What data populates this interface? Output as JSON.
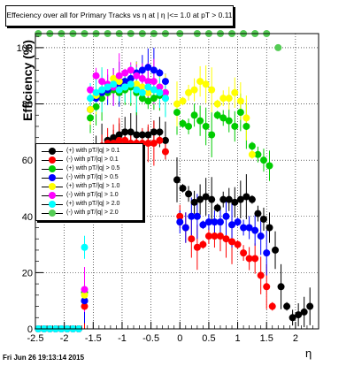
{
  "chart_data": {
    "type": "scatter",
    "title": "Effeciency over all for Primary Tracks vs  η at | η |<= 1.0 at pT > 0.11",
    "xlabel": "η",
    "ylabel": "Efficiency (%)",
    "xlim": [
      -2.5,
      2.4
    ],
    "ylim": [
      0,
      105
    ],
    "x_ticks": [
      -2.5,
      -2,
      -1.5,
      -1,
      -0.5,
      0,
      0.5,
      1,
      1.5,
      2
    ],
    "x_tick_labels": [
      "-2.5",
      "-2",
      "-1.5",
      "-1",
      "-0.5",
      "0",
      "0.5",
      "1",
      "1.5",
      "2"
    ],
    "y_ticks": [
      0,
      20,
      40,
      60,
      80,
      100
    ],
    "y_tick_labels": [
      "0",
      "20",
      "40",
      "60",
      "80",
      "100"
    ],
    "grid": true,
    "legend_position": "left-middle",
    "series": [
      {
        "name": "(+) with pT/|q| > 0.1",
        "color": "#000000",
        "x": [
          -2.45,
          -2.35,
          -2.25,
          -2.15,
          -2.05,
          -1.95,
          -1.85,
          -1.75,
          -1.65,
          -1.55,
          -1.45,
          -1.35,
          -1.25,
          -1.15,
          -1.05,
          -0.95,
          -0.85,
          -0.75,
          -0.65,
          -0.55,
          -0.45,
          -0.35,
          -0.25,
          -0.05,
          0.05,
          0.15,
          0.25,
          0.35,
          0.45,
          0.55,
          0.65,
          0.75,
          0.85,
          0.95,
          1.05,
          1.15,
          1.25,
          1.35,
          1.45,
          1.55,
          1.65,
          1.75,
          1.85,
          1.95,
          2.05,
          2.15,
          2.25
        ],
        "y": [
          0,
          0,
          0,
          0,
          0,
          0,
          0,
          0,
          10,
          58,
          62,
          65,
          67,
          68,
          69,
          70,
          70,
          69,
          69,
          69,
          70,
          70,
          67,
          53,
          50,
          48,
          45,
          46,
          47,
          46,
          43,
          46,
          46,
          45,
          46,
          47,
          46,
          41,
          39,
          36,
          28,
          15,
          8,
          4,
          5,
          6,
          8
        ]
      },
      {
        "name": "(-) with pT/|q| > 0.1",
        "color": "#ff0000",
        "x": [
          -2.45,
          -2.35,
          -2.25,
          -2.15,
          -2.05,
          -1.95,
          -1.85,
          -1.75,
          -1.65,
          -1.55,
          -1.45,
          -1.35,
          -1.25,
          -1.15,
          -1.05,
          -0.95,
          -0.85,
          -0.75,
          -0.65,
          -0.55,
          -0.45,
          -0.35,
          -0.25,
          0.0,
          0.1,
          0.2,
          0.3,
          0.4,
          0.5,
          0.6,
          0.7,
          0.8,
          0.9,
          1.0,
          1.1,
          1.2,
          1.3,
          1.4,
          1.5,
          1.6
        ],
        "y": [
          0,
          0,
          0,
          0,
          0,
          0,
          0,
          0,
          8,
          60,
          63,
          65,
          66,
          66,
          67,
          67,
          66,
          66,
          66,
          66,
          66,
          67,
          63,
          40,
          36,
          32,
          29,
          30,
          33,
          33,
          33,
          32,
          31,
          30,
          27,
          25,
          25,
          19,
          15,
          8
        ]
      },
      {
        "name": "(+) with pT/|q| > 0.5",
        "color": "#00cc00",
        "x": [
          -2.45,
          -2.35,
          -2.25,
          -2.15,
          -2.05,
          -1.95,
          -1.85,
          -1.75,
          -1.65,
          -1.55,
          -1.45,
          -1.35,
          -1.25,
          -1.15,
          -1.05,
          -0.95,
          -0.85,
          -0.75,
          -0.65,
          -0.55,
          -0.45,
          -0.35,
          -0.25,
          -0.05,
          0.05,
          0.15,
          0.25,
          0.35,
          0.45,
          0.55,
          0.65,
          0.75,
          0.85,
          0.95,
          1.05,
          1.15,
          1.25,
          1.35,
          1.45,
          1.55
        ],
        "y": [
          0,
          0,
          0,
          0,
          0,
          0,
          0,
          0,
          13,
          75,
          79,
          82,
          84,
          85,
          84,
          85,
          86,
          84,
          82,
          81,
          82,
          83,
          82,
          77,
          73,
          72,
          76,
          74,
          72,
          69,
          76,
          75,
          74,
          72,
          77,
          72,
          65,
          62,
          60,
          58
        ]
      },
      {
        "name": "(-) with pT/|q| > 0.5",
        "color": "#0000ff",
        "x": [
          -2.45,
          -2.35,
          -2.25,
          -2.15,
          -2.05,
          -1.95,
          -1.85,
          -1.75,
          -1.65,
          -1.55,
          -1.45,
          -1.35,
          -1.25,
          -1.15,
          -1.05,
          -0.95,
          -0.85,
          -0.75,
          -0.65,
          -0.55,
          -0.45,
          -0.35,
          -0.25,
          0.0,
          0.1,
          0.2,
          0.3,
          0.4,
          0.5,
          0.6,
          0.7,
          0.8,
          0.9,
          1.0,
          1.1,
          1.2,
          1.3,
          1.4,
          1.5
        ],
        "y": [
          0,
          0,
          0,
          0,
          0,
          0,
          0,
          0,
          10,
          78,
          82,
          84,
          85,
          86,
          87,
          88,
          89,
          91,
          92,
          93,
          92,
          91,
          88,
          38,
          36,
          40,
          40,
          37,
          38,
          38,
          38,
          40,
          37,
          38,
          36,
          36,
          35,
          33,
          27
        ]
      },
      {
        "name": "(+) with pT/|q| > 1.0",
        "color": "#ffff00",
        "x": [
          -2.45,
          -2.35,
          -2.25,
          -2.15,
          -2.05,
          -1.95,
          -1.85,
          -1.75,
          -1.65,
          -1.55,
          -1.45,
          -1.35,
          -1.25,
          -1.15,
          -1.05,
          -0.95,
          -0.85,
          -0.75,
          -0.65,
          -0.55,
          -0.45,
          -0.35,
          -0.25,
          -0.05,
          0.05,
          0.15,
          0.25,
          0.35,
          0.45,
          0.55,
          0.65,
          0.75,
          0.85,
          0.95,
          1.05,
          1.15,
          1.25
        ],
        "y": [
          0,
          0,
          0,
          0,
          0,
          0,
          0,
          0,
          12,
          78,
          83,
          85,
          86,
          89,
          88,
          86,
          87,
          87,
          86,
          84,
          85,
          86,
          84,
          80,
          81,
          84,
          85,
          88,
          87,
          85,
          80,
          82,
          82,
          84,
          81,
          75,
          62
        ]
      },
      {
        "name": "(-) with pT/|q| > 1.0",
        "color": "#ff00ff",
        "x": [
          -2.45,
          -2.35,
          -2.25,
          -2.15,
          -2.05,
          -1.95,
          -1.85,
          -1.75,
          -1.65,
          -1.55,
          -1.45,
          -1.35,
          -1.25,
          -1.15,
          -1.05,
          -0.95,
          -0.85,
          -0.75,
          -0.65,
          -0.55,
          -0.45,
          -0.35,
          -0.25
        ],
        "y": [
          0,
          0,
          0,
          0,
          0,
          0,
          0,
          0,
          14,
          85,
          90,
          88,
          87,
          86,
          90,
          91,
          92,
          90,
          89,
          88,
          88,
          86,
          84
        ]
      },
      {
        "name": "(+) with pT/|q| > 2.0",
        "color": "#00ffff",
        "x": [
          -2.45,
          -2.35,
          -2.25,
          -2.15,
          -2.05,
          -1.95,
          -1.85,
          -1.75,
          -1.65,
          -1.55,
          -1.45,
          -1.35,
          -1.25,
          -1.15,
          -1.05,
          -0.95,
          -0.85,
          -0.75,
          -0.65,
          -0.55,
          -0.45,
          -0.35,
          -0.25
        ],
        "y": [
          0,
          0,
          0,
          0,
          0,
          0,
          0,
          0,
          29,
          82,
          84,
          85,
          86,
          87,
          85,
          86,
          87,
          85,
          84,
          86,
          85,
          84,
          82
        ]
      },
      {
        "name": "(-) with pT/|q| > 2.0",
        "color": "#55cc55",
        "x": [
          -2.45,
          -2.25,
          -2.05,
          -1.85,
          -1.65,
          -1.45,
          -1.25,
          -1.05,
          -0.85,
          -0.65,
          -0.45,
          -0.25,
          0.0,
          0.3,
          0.5,
          0.7,
          0.9,
          1.1,
          1.3,
          1.5,
          1.7
        ],
        "y": [
          105,
          105,
          105,
          105,
          105,
          105,
          105,
          105,
          105,
          105,
          105,
          105,
          105,
          105,
          105,
          105,
          105,
          105,
          105,
          105,
          100
        ]
      }
    ]
  },
  "footer": "Fri Jun 26 19:13:14 2015"
}
